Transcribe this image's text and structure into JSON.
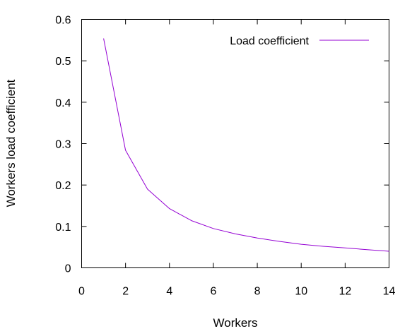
{
  "chart_data": {
    "type": "line",
    "xlabel": "Workers",
    "ylabel": "Workers load coefficient",
    "xlim": [
      0,
      14
    ],
    "ylim": [
      0,
      0.6
    ],
    "xticks": [
      0,
      2,
      4,
      6,
      8,
      10,
      12,
      14
    ],
    "yticks": [
      0,
      0.1,
      0.2,
      0.3,
      0.4,
      0.5,
      0.6
    ],
    "xtick_labels": [
      "0",
      "2",
      "4",
      "6",
      "8",
      "10",
      "12",
      "14"
    ],
    "ytick_labels": [
      "0",
      "0.1",
      "0.2",
      "0.3",
      "0.4",
      "0.5",
      "0.6"
    ],
    "grid": false,
    "legend_position": "top-right",
    "series": [
      {
        "name": "Load coefficient",
        "color": "#9400d3",
        "x": [
          1,
          2,
          3,
          4,
          5,
          6,
          7,
          8,
          9,
          10,
          11,
          12,
          13,
          14
        ],
        "y": [
          0.554,
          0.284,
          0.19,
          0.143,
          0.114,
          0.095,
          0.082,
          0.072,
          0.064,
          0.057,
          0.052,
          0.048,
          0.044,
          0.04
        ]
      }
    ]
  }
}
